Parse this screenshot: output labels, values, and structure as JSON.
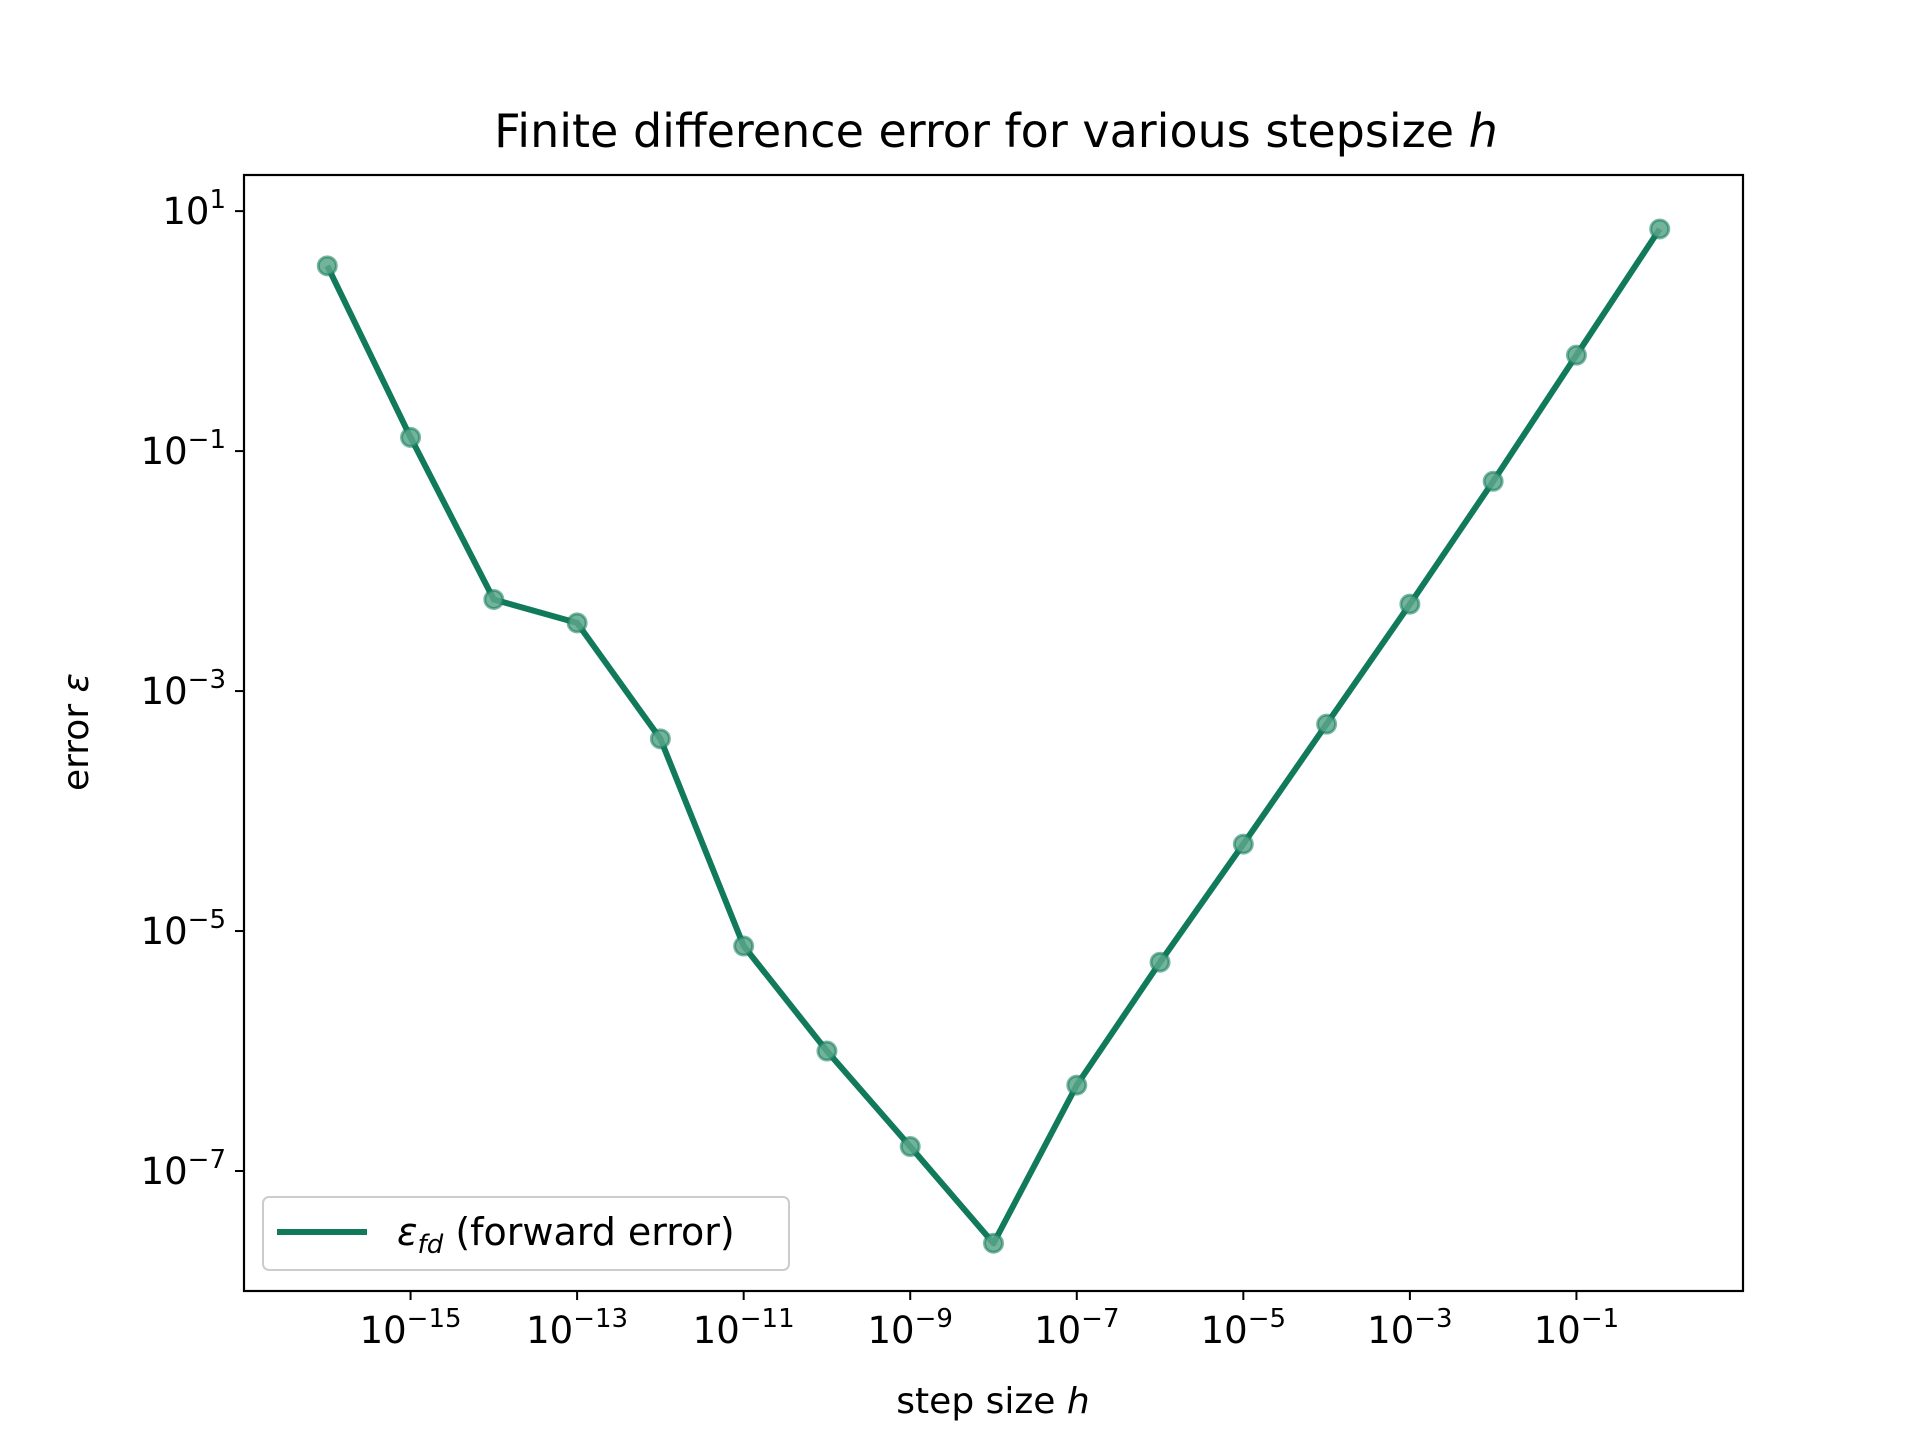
{
  "chart_data": {
    "type": "line",
    "title": "Finite difference error for various stepsize",
    "title_var": "h",
    "xlabel": "step size",
    "xlabel_var": "h",
    "ylabel": "error",
    "ylabel_var": "ε",
    "xscale": "log",
    "yscale": "log",
    "xlim": [
      "1e-17",
      "10"
    ],
    "ylim": [
      "1e-8",
      "20"
    ],
    "x_ticks": [
      {
        "base": "10",
        "exp": "−15",
        "value": 1e-15
      },
      {
        "base": "10",
        "exp": "−13",
        "value": 1e-13
      },
      {
        "base": "10",
        "exp": "−11",
        "value": 1e-11
      },
      {
        "base": "10",
        "exp": "−9",
        "value": 1e-09
      },
      {
        "base": "10",
        "exp": "−7",
        "value": 1e-07
      },
      {
        "base": "10",
        "exp": "−5",
        "value": 1e-05
      },
      {
        "base": "10",
        "exp": "−3",
        "value": 0.001
      },
      {
        "base": "10",
        "exp": "−1",
        "value": 0.1
      }
    ],
    "y_ticks": [
      {
        "base": "10",
        "exp": "1",
        "value": 10
      },
      {
        "base": "10",
        "exp": "−1",
        "value": 0.1
      },
      {
        "base": "10",
        "exp": "−3",
        "value": 0.001
      },
      {
        "base": "10",
        "exp": "−5",
        "value": 1e-05
      },
      {
        "base": "10",
        "exp": "−7",
        "value": 1e-07
      }
    ],
    "series": [
      {
        "legend_symbol": "ε",
        "legend_subscript": "fd",
        "name": "(forward error)",
        "color": "#117a5b",
        "marker_color": "#5aa68a",
        "x": [
          1e-16,
          1e-15,
          1e-14,
          1e-13,
          1e-12,
          1e-11,
          1e-10,
          1e-09,
          1e-08,
          1e-07,
          1e-06,
          1e-05,
          0.0001,
          0.001,
          0.01,
          0.1,
          1
        ],
        "y": [
          3.5,
          0.13,
          0.0058,
          0.0037,
          0.0004,
          7.5e-06,
          1e-06,
          1.6e-07,
          2.5e-08,
          5.2e-07,
          5.5e-06,
          5.3e-05,
          0.00053,
          0.0053,
          0.056,
          0.63,
          7.1
        ]
      }
    ],
    "grid": false,
    "legend_position": "lower-left"
  }
}
